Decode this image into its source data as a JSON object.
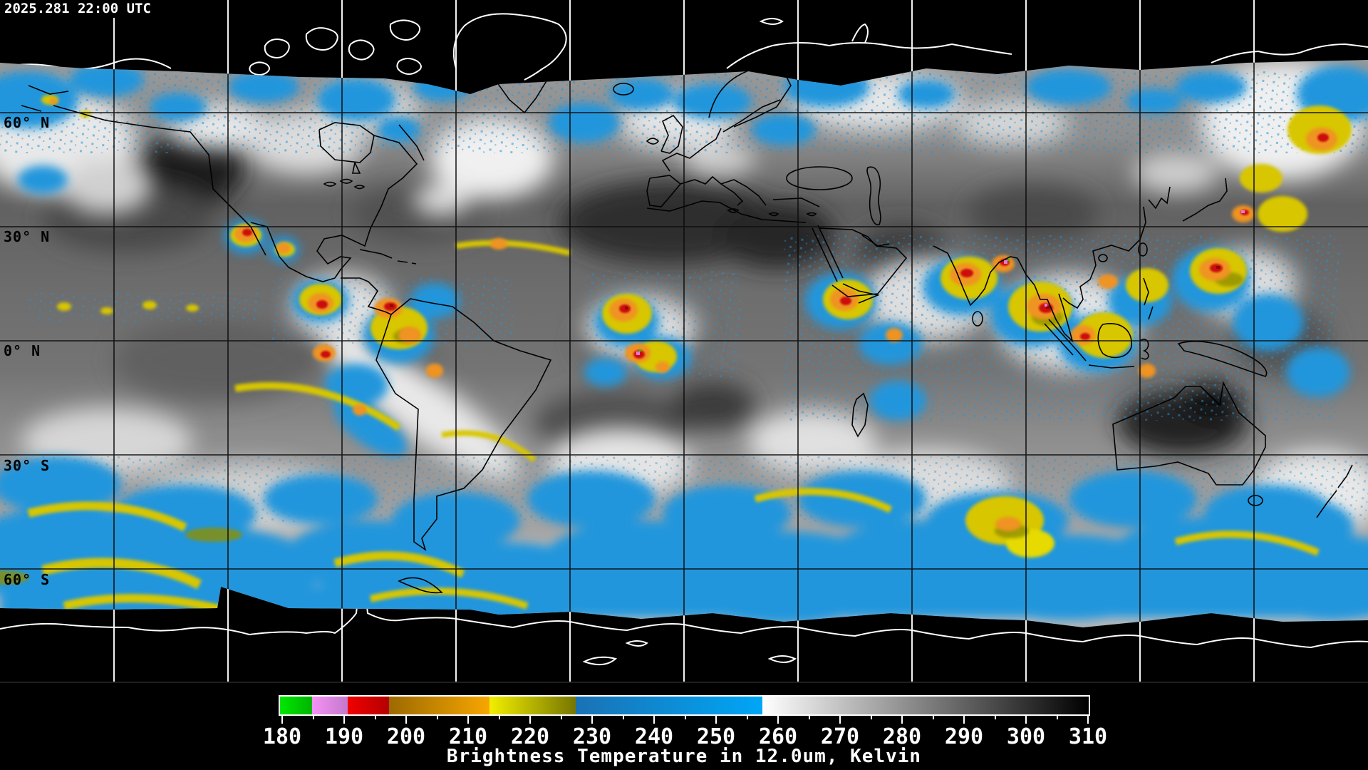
{
  "header": {
    "timestamp": "2025.281 22:00 UTC"
  },
  "map": {
    "lat_labels": [
      {
        "text": "60° N"
      },
      {
        "text": "30° N"
      },
      {
        "text": "0° N"
      },
      {
        "text": "30° S"
      },
      {
        "text": "60° S"
      }
    ],
    "grid": {
      "lat_step_deg": 30,
      "lon_step_deg": 30
    }
  },
  "colorbar": {
    "tick_labels": [
      "180",
      "190",
      "200",
      "210",
      "220",
      "230",
      "240",
      "250",
      "260",
      "270",
      "280",
      "290",
      "300",
      "310"
    ],
    "minor_tick_step_kelvin": 5,
    "caption": "Brightness Temperature in 12.0um, Kelvin",
    "segments": [
      {
        "name": "green",
        "start": "#00e800",
        "end": "#00b400"
      },
      {
        "name": "violet",
        "start": "#f692f6",
        "end": "#c478cc"
      },
      {
        "name": "red",
        "start": "#f20000",
        "end": "#b40000"
      },
      {
        "name": "orange",
        "start": "#9c6a00",
        "end": "#f7a600"
      },
      {
        "name": "yellow-olive",
        "start": "#f2ee00",
        "end": "#767600"
      },
      {
        "name": "blue",
        "start": "#1a72b4",
        "end": "#00a6f6"
      },
      {
        "name": "gray-ramp",
        "start": "#ffffff",
        "end": "#000000"
      }
    ]
  }
}
